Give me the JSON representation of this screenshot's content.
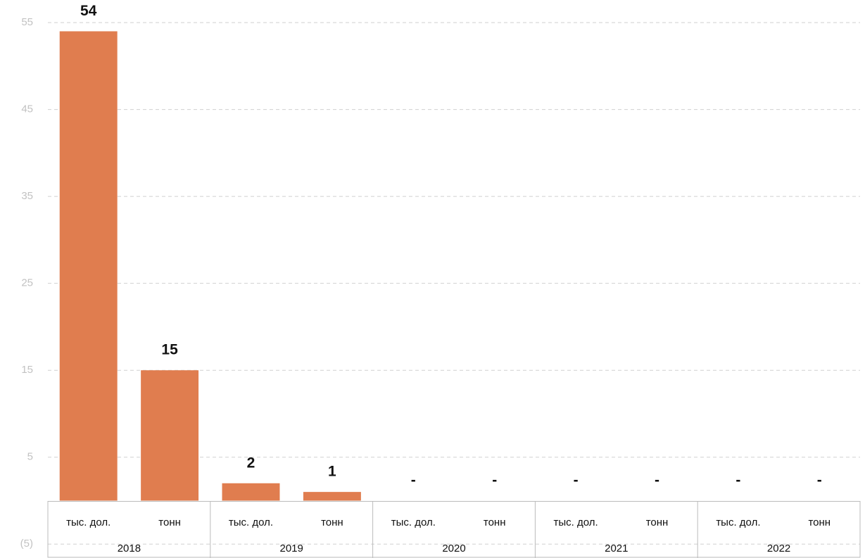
{
  "chart_data": {
    "type": "bar",
    "categories": [
      "тыс. дол.",
      "тонн",
      "тыс. дол.",
      "тонн",
      "тыс. дол.",
      "тонн",
      "тыс. дол.",
      "тонн",
      "тыс. дол.",
      "тонн"
    ],
    "category_groups": [
      "2018",
      "2019",
      "2020",
      "2021",
      "2022"
    ],
    "values": [
      54,
      15,
      2,
      1,
      null,
      null,
      null,
      null,
      null,
      null
    ],
    "value_labels": [
      "54",
      "15",
      "2",
      "1",
      "-",
      "-",
      "-",
      "-",
      "-",
      "-"
    ],
    "color": "#e07d4f",
    "ylim": [
      -6.6,
      57.6
    ],
    "yticks": [
      55,
      45,
      35,
      25,
      15,
      5,
      {
        "value": -5,
        "label": "(5)"
      }
    ],
    "grid": true
  }
}
